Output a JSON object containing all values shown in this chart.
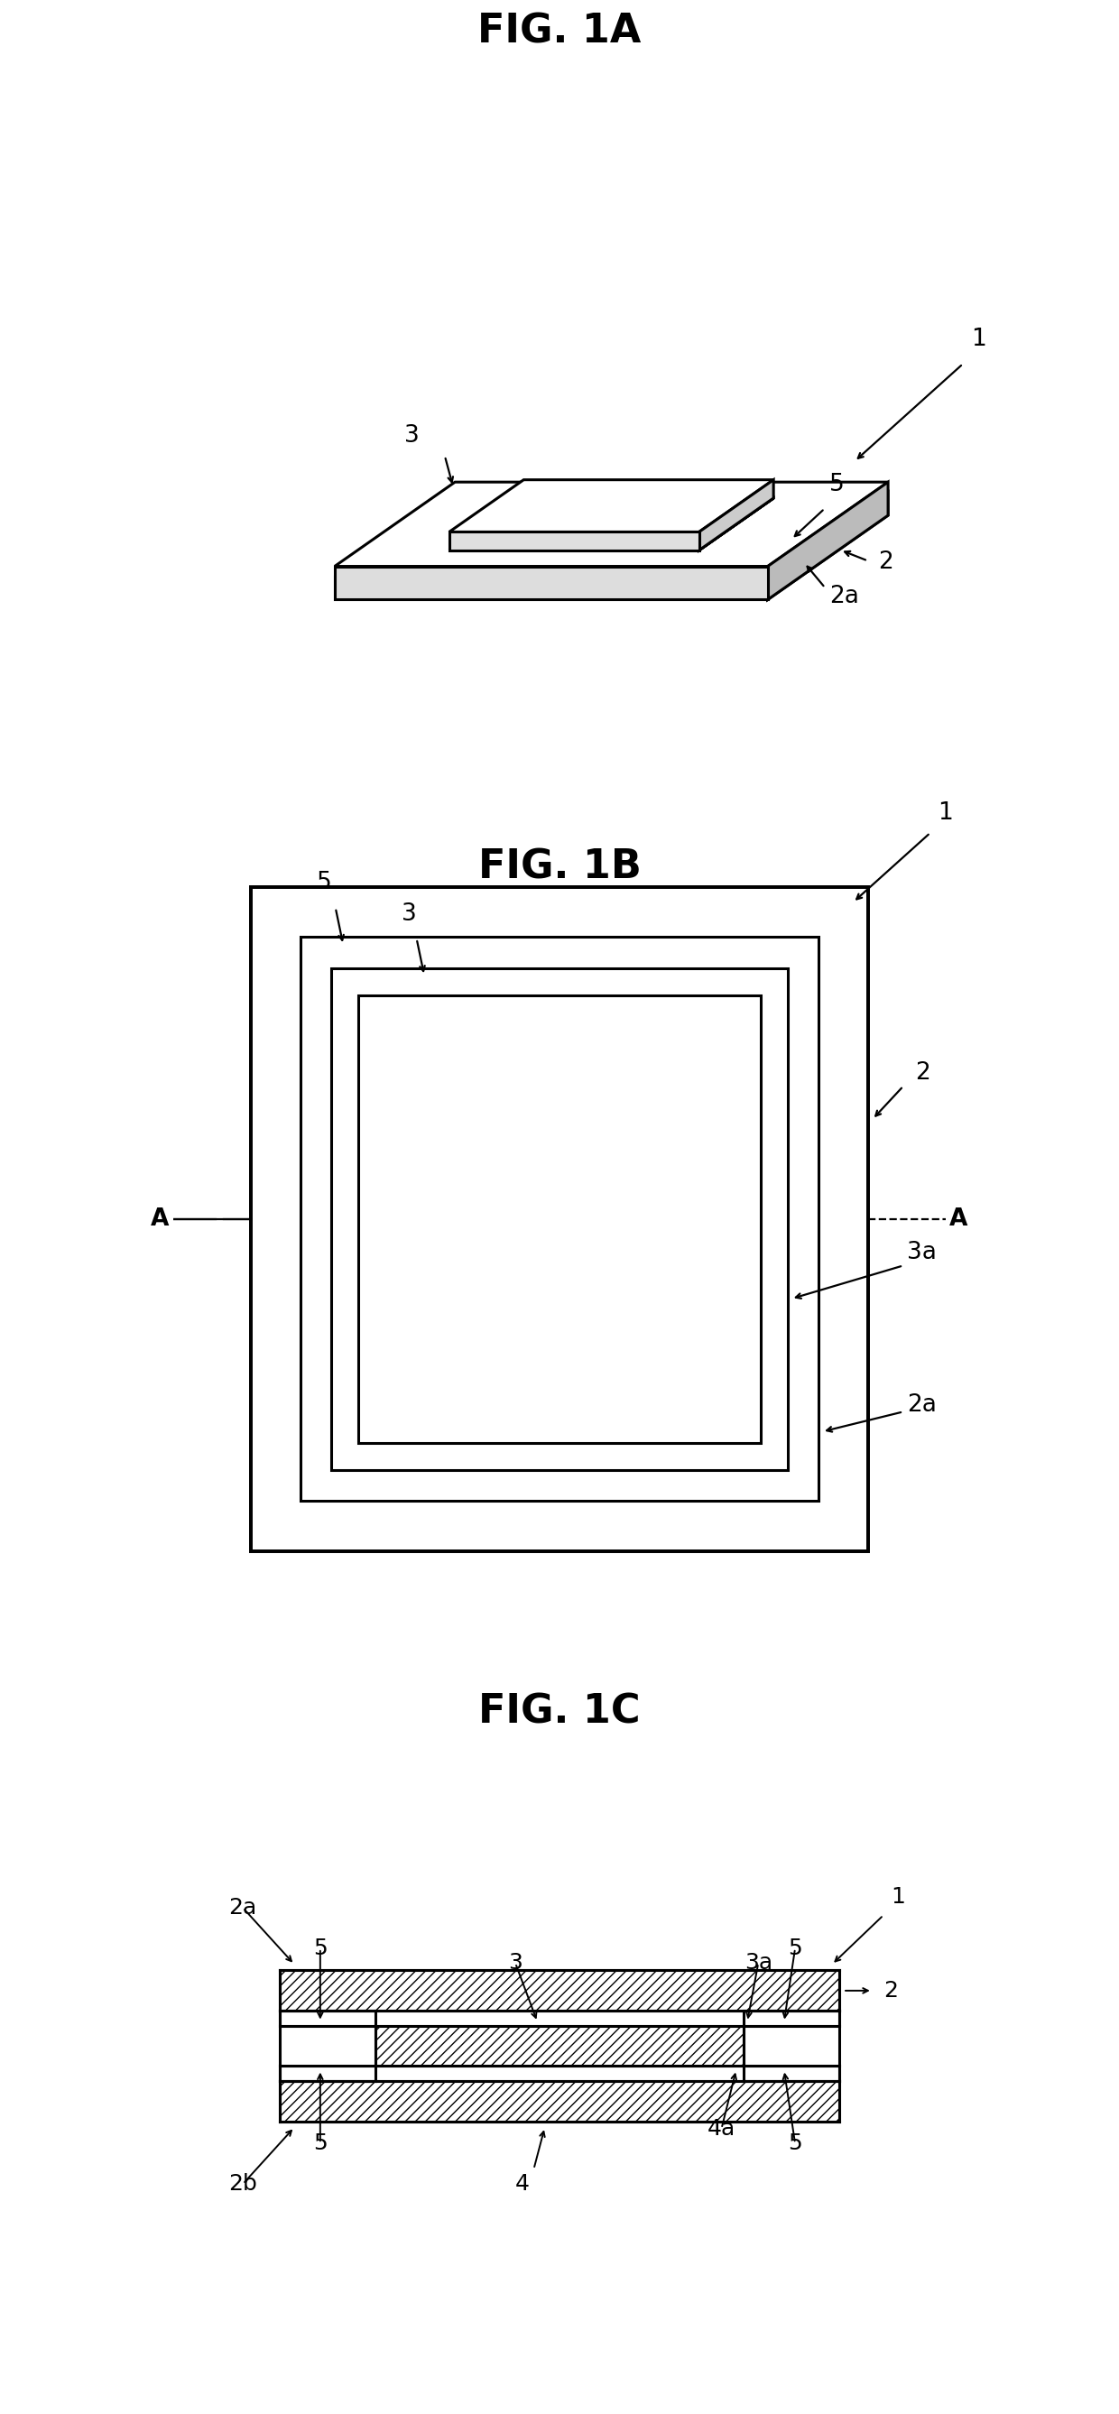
{
  "fig_title_1A": "FIG. 1A",
  "fig_title_1B": "FIG. 1B",
  "fig_title_1C": "FIG. 1C",
  "bg_color": "#ffffff",
  "line_color": "#000000",
  "lw": 2.2,
  "lw_thin": 1.6,
  "label_fontsize": 19,
  "title_fontsize": 32,
  "fig1A_yspan": [
    0.655,
    0.345
  ],
  "fig1B_yspan": [
    0.335,
    0.36
  ],
  "fig1C_yspan": [
    0.0,
    0.3
  ]
}
